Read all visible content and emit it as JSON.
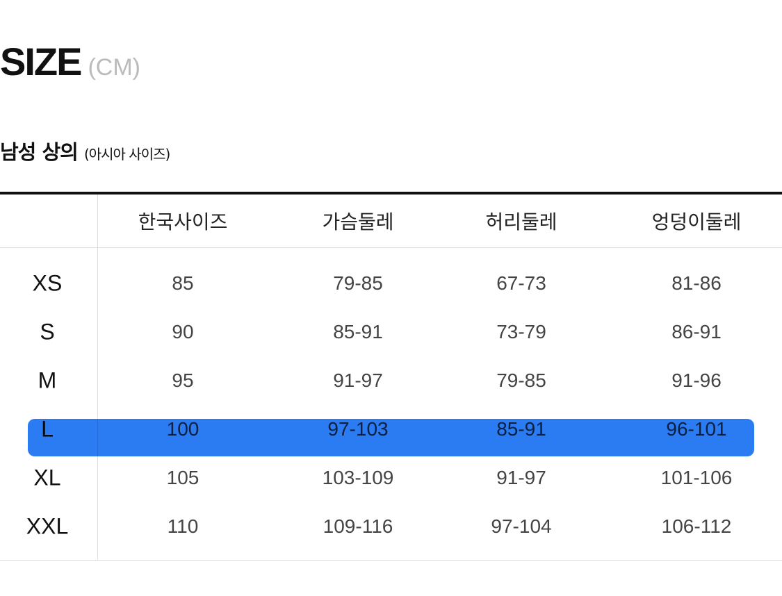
{
  "header": {
    "title": "SIZE",
    "unit": "(CM)"
  },
  "section": {
    "title": "남성 상의",
    "note": "(아시아 사이즈)"
  },
  "table": {
    "columns": [
      "",
      "한국사이즈",
      "가슴둘레",
      "허리둘레",
      "엉덩이둘레"
    ],
    "rows": [
      [
        "XS",
        "85",
        "79-85",
        "67-73",
        "81-86"
      ],
      [
        "S",
        "90",
        "85-91",
        "73-79",
        "86-91"
      ],
      [
        "M",
        "95",
        "91-97",
        "79-85",
        "91-96"
      ],
      [
        "L",
        "100",
        "97-103",
        "85-91",
        "96-101"
      ],
      [
        "XL",
        "105",
        "103-109",
        "91-97",
        "101-106"
      ],
      [
        "XXL",
        "110",
        "109-116",
        "97-104",
        "106-112"
      ]
    ],
    "highlighted_row": "L",
    "highlight_color": "#1f74f2"
  }
}
